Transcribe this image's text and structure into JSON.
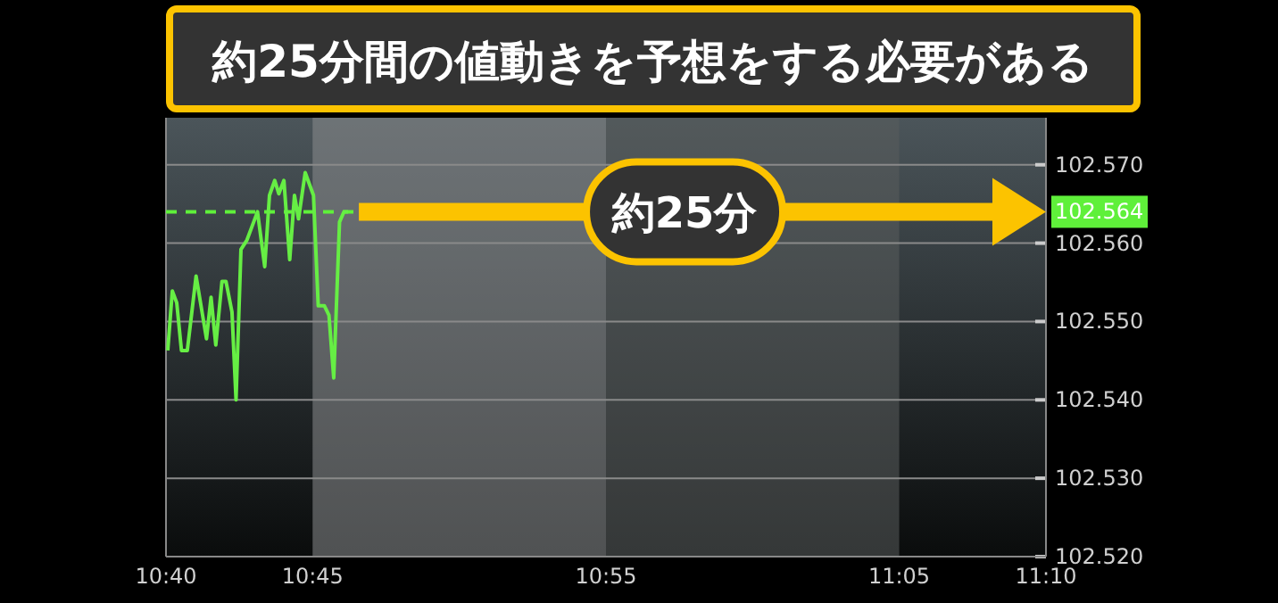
{
  "chart_data": {
    "type": "line",
    "title": "約25分間の値動きを予想をする必要がある",
    "annotations": [
      "約25分"
    ],
    "x": [
      10.6677,
      10.6703,
      10.6728,
      10.6755,
      10.6788,
      10.6838,
      10.6897,
      10.6923,
      10.695,
      10.6985,
      10.7008,
      10.7042,
      10.7065,
      10.7093,
      10.7127,
      10.7187,
      10.7228,
      10.7255,
      10.7285,
      10.7308,
      10.7337,
      10.737,
      10.7397,
      10.742,
      10.7458,
      10.7505,
      10.7532,
      10.7567,
      10.7593,
      10.762,
      10.7653,
      10.7678,
      10.7702
    ],
    "series": [
      {
        "color": "#66ee44",
        "values": [
          102.5463,
          102.5539,
          102.5524,
          102.5463,
          102.5463,
          102.5558,
          102.5478,
          102.5531,
          102.547,
          102.5551,
          102.5551,
          102.5512,
          102.54,
          102.5592,
          102.5604,
          102.564,
          102.557,
          102.5661,
          102.568,
          102.5663,
          102.568,
          102.5579,
          102.5661,
          102.5631,
          102.569,
          102.5661,
          102.552,
          102.552,
          102.5508,
          102.5428,
          102.5627,
          102.564,
          102.564
        ]
      }
    ],
    "xlim": [
      10.6667,
      11.1667
    ],
    "xticks": [
      {
        "value": 10.6667,
        "label": "10:40"
      },
      {
        "value": 10.75,
        "label": "10:45"
      },
      {
        "value": 10.9167,
        "label": "10:55"
      },
      {
        "value": 11.0833,
        "label": "11:05"
      },
      {
        "value": 11.1667,
        "label": "11:10"
      }
    ],
    "ylim": [
      102.52,
      102.576
    ],
    "yticks": [
      {
        "value": 102.52,
        "label": "102.520"
      },
      {
        "value": 102.53,
        "label": "102.530"
      },
      {
        "value": 102.54,
        "label": "102.540"
      },
      {
        "value": 102.55,
        "label": "102.550"
      },
      {
        "value": 102.56,
        "label": "102.560"
      },
      {
        "value": 102.57,
        "label": "102.570"
      }
    ],
    "ref_lines": [
      {
        "axis": "y",
        "value": 102.564,
        "label": "102.564",
        "color": "#5ff03a",
        "line_style": "dashed"
      }
    ],
    "bands": [
      {
        "axis": "x",
        "from": 10.75,
        "to": 10.9167,
        "color": "#8a8d8e"
      },
      {
        "axis": "x",
        "from": 10.9167,
        "to": 11.0833,
        "color": "#5a5c5c"
      }
    ],
    "grid": "y",
    "marker": "none",
    "line_style": "solid"
  }
}
